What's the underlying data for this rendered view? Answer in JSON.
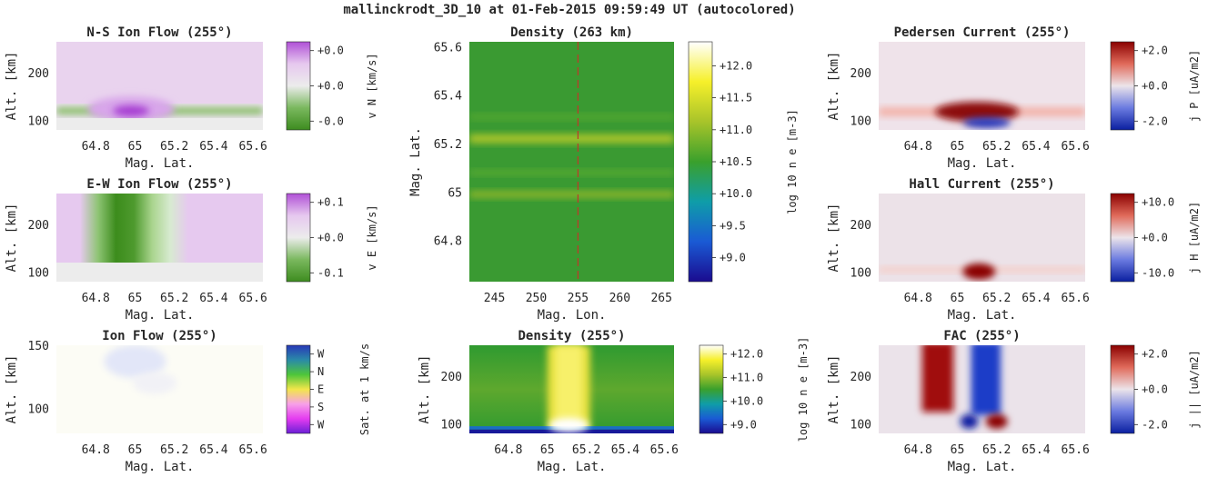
{
  "figure": {
    "suptitle": "mallinckrodt_3D_10 at 01-Feb-2015 09:59:49 UT (autocolored)"
  },
  "colors": {
    "green_magenta": [
      "#3d8c1f",
      "#7ab85e",
      "#ececec",
      "#e6c8ef",
      "#b050d6"
    ],
    "diverging": [
      "#0a1fa0",
      "#6b7be0",
      "#ece4ea",
      "#e06a5a",
      "#8a0000"
    ],
    "parula": [
      "#1a0b8f",
      "#1a5ad4",
      "#0f9da8",
      "#3aa02c",
      "#a8c42a",
      "#f6f02a",
      "#ffffff"
    ],
    "ion_hue": [
      "#6a1fd6",
      "#e43cf0",
      "#f7a0e8",
      "#f2e64a",
      "#4ec63a",
      "#2a8aa8",
      "#2838b8"
    ]
  },
  "chart_data": [
    {
      "id": "ns_ion_flow",
      "type": "heatmap",
      "title": "N-S Ion Flow (255°)",
      "xlabel": "Mag. Lat.",
      "ylabel": "Alt. [km]",
      "xlim": [
        64.6,
        65.65
      ],
      "ylim": [
        80,
        265
      ],
      "xticks": [
        "64.8",
        "65",
        "65.2",
        "65.4",
        "65.6"
      ],
      "yticks": [
        "100",
        "200"
      ],
      "colorbar": {
        "ticks": [
          "+0.0",
          "+0.0",
          "-0.0"
        ],
        "label": "v_N [km/s]"
      }
    },
    {
      "id": "ew_ion_flow",
      "type": "heatmap",
      "title": "E-W Ion Flow (255°)",
      "xlabel": "Mag. Lat.",
      "ylabel": "Alt. [km]",
      "xlim": [
        64.6,
        65.65
      ],
      "ylim": [
        80,
        265
      ],
      "xticks": [
        "64.8",
        "65",
        "65.2",
        "65.4",
        "65.6"
      ],
      "yticks": [
        "100",
        "200"
      ],
      "colorbar": {
        "ticks": [
          "+0.1",
          "+0.0",
          "-0.1"
        ],
        "label": "v_E [km/s]"
      }
    },
    {
      "id": "ion_flow",
      "type": "heatmap",
      "title": "Ion Flow (255°)",
      "xlabel": "Mag. Lat.",
      "ylabel": "Alt. [km]",
      "xlim": [
        64.6,
        65.65
      ],
      "ylim": [
        80,
        150
      ],
      "xticks": [
        "64.8",
        "65",
        "65.2",
        "65.4",
        "65.6"
      ],
      "yticks": [
        "100",
        "150"
      ],
      "colorbar": {
        "ticks": [
          "W",
          "N",
          "E",
          "S",
          "W"
        ],
        "label": "Sat. at 1 km/s"
      }
    },
    {
      "id": "density_263km",
      "type": "heatmap",
      "title": "Density (263 km)",
      "xlabel": "Mag. Lon.",
      "ylabel": "Mag. Lat.",
      "xlim": [
        242,
        266.5
      ],
      "ylim": [
        64.63,
        65.62
      ],
      "xticks": [
        "245",
        "250",
        "255",
        "260",
        "265"
      ],
      "yticks": [
        "64.8",
        "65",
        "65.2",
        "65.4",
        "65.6"
      ],
      "reference_line": {
        "x": 255,
        "style": "dashed",
        "color": "#c0392b"
      },
      "colorbar": {
        "ticks": [
          "+12.0",
          "+11.5",
          "+11.0",
          "+10.5",
          "+10.0",
          "+9.5",
          "+9.0"
        ],
        "label": "log_10 n_e [m^-3]"
      }
    },
    {
      "id": "density_255",
      "type": "heatmap",
      "title": "Density (255°)",
      "xlabel": "Mag. Lat.",
      "ylabel": "Alt. [km]",
      "xlim": [
        64.6,
        65.65
      ],
      "ylim": [
        80,
        265
      ],
      "xticks": [
        "64.8",
        "65",
        "65.2",
        "65.4",
        "65.6"
      ],
      "yticks": [
        "100",
        "200"
      ],
      "colorbar": {
        "ticks": [
          "+12.0",
          "+11.0",
          "+10.0",
          "+9.0"
        ],
        "label": "log_10 n_e [m^-3]"
      }
    },
    {
      "id": "pedersen_current",
      "type": "heatmap",
      "title": "Pedersen Current (255°)",
      "xlabel": "Mag. Lat.",
      "ylabel": "Alt. [km]",
      "xlim": [
        64.6,
        65.65
      ],
      "ylim": [
        80,
        265
      ],
      "xticks": [
        "64.8",
        "65",
        "65.2",
        "65.4",
        "65.6"
      ],
      "yticks": [
        "100",
        "200"
      ],
      "colorbar": {
        "ticks": [
          "+2.0",
          "+0.0",
          "-2.0"
        ],
        "label": "j_P [uA/m^2]"
      }
    },
    {
      "id": "hall_current",
      "type": "heatmap",
      "title": "Hall Current (255°)",
      "xlabel": "Mag. Lat.",
      "ylabel": "Alt. [km]",
      "xlim": [
        64.6,
        65.65
      ],
      "ylim": [
        80,
        265
      ],
      "xticks": [
        "64.8",
        "65",
        "65.2",
        "65.4",
        "65.6"
      ],
      "yticks": [
        "100",
        "200"
      ],
      "colorbar": {
        "ticks": [
          "+10.0",
          "+0.0",
          "-10.0"
        ],
        "label": "j_H [uA/m^2]"
      }
    },
    {
      "id": "fac",
      "type": "heatmap",
      "title": "FAC (255°)",
      "xlabel": "Mag. Lat.",
      "ylabel": "Alt. [km]",
      "xlim": [
        64.6,
        65.65
      ],
      "ylim": [
        80,
        265
      ],
      "xticks": [
        "64.8",
        "65",
        "65.2",
        "65.4",
        "65.6"
      ],
      "yticks": [
        "100",
        "200"
      ],
      "colorbar": {
        "ticks": [
          "+2.0",
          "+0.0",
          "-2.0"
        ],
        "label": "j_|| [uA/m^2]"
      }
    }
  ]
}
